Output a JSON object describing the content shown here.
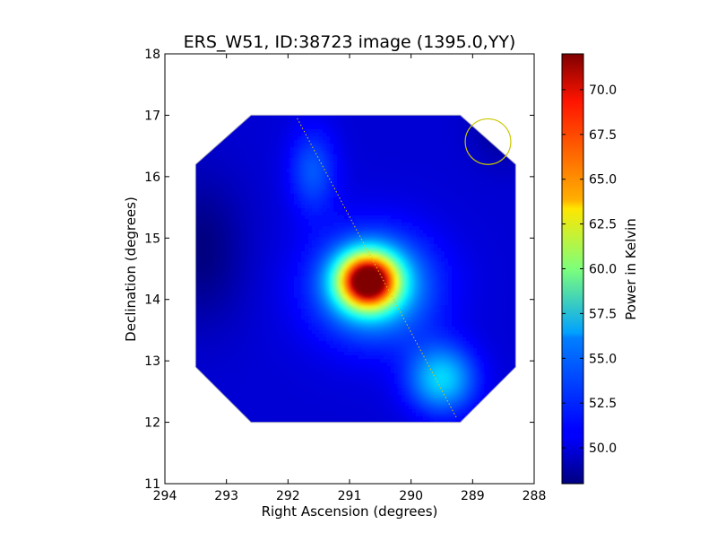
{
  "chart_data": {
    "type": "heatmap",
    "title": "ERS_W51, ID:38723 image (1395.0,YY)",
    "xlabel": "Right Ascension (degrees)",
    "ylabel": "Declination (degrees)",
    "colorbar_label": "Power in Kelvin",
    "xlim": [
      294,
      288
    ],
    "ylim": [
      11,
      18
    ],
    "x_ticks": [
      294,
      293,
      292,
      291,
      290,
      289,
      288
    ],
    "x_tick_labels": [
      "294",
      "293",
      "292",
      "291",
      "290",
      "289",
      "288"
    ],
    "y_ticks": [
      11,
      12,
      13,
      14,
      15,
      16,
      17,
      18
    ],
    "y_tick_labels": [
      "11",
      "12",
      "13",
      "14",
      "15",
      "16",
      "17",
      "18"
    ],
    "colorbar_range": [
      48.0,
      72.0
    ],
    "colorbar_ticks": [
      50.0,
      52.5,
      55.0,
      57.5,
      60.0,
      62.5,
      65.0,
      67.5,
      70.0
    ],
    "colorbar_tick_labels": [
      "50.0",
      "52.5",
      "55.0",
      "57.5",
      "60.0",
      "62.5",
      "65.0",
      "67.5",
      "70.0"
    ],
    "colormap": "jet",
    "image_footprint": {
      "shape": "octagon",
      "vertices": [
        [
          292.6,
          17.0
        ],
        [
          289.2,
          17.0
        ],
        [
          288.3,
          16.2
        ],
        [
          288.3,
          12.9
        ],
        [
          289.2,
          12.0
        ],
        [
          292.6,
          12.0
        ],
        [
          293.5,
          12.9
        ],
        [
          293.5,
          16.2
        ]
      ]
    },
    "features": [
      {
        "name": "peak",
        "ra": 290.7,
        "dec": 14.3,
        "value": 72.0
      },
      {
        "name": "emission-extension",
        "ra": 289.5,
        "dec": 12.7,
        "value": 56.0
      },
      {
        "name": "background-minimum",
        "ra": 293.4,
        "dec": 14.8,
        "value": 48.0
      }
    ],
    "annotations": [
      {
        "type": "dotted-line",
        "from": [
          291.85,
          16.95
        ],
        "to": [
          289.25,
          12.05
        ],
        "color": "#e8c800"
      },
      {
        "type": "circle",
        "center": [
          288.75,
          16.57
        ],
        "radius_deg": 0.37,
        "color": "#c8c800"
      }
    ],
    "grid": false
  }
}
